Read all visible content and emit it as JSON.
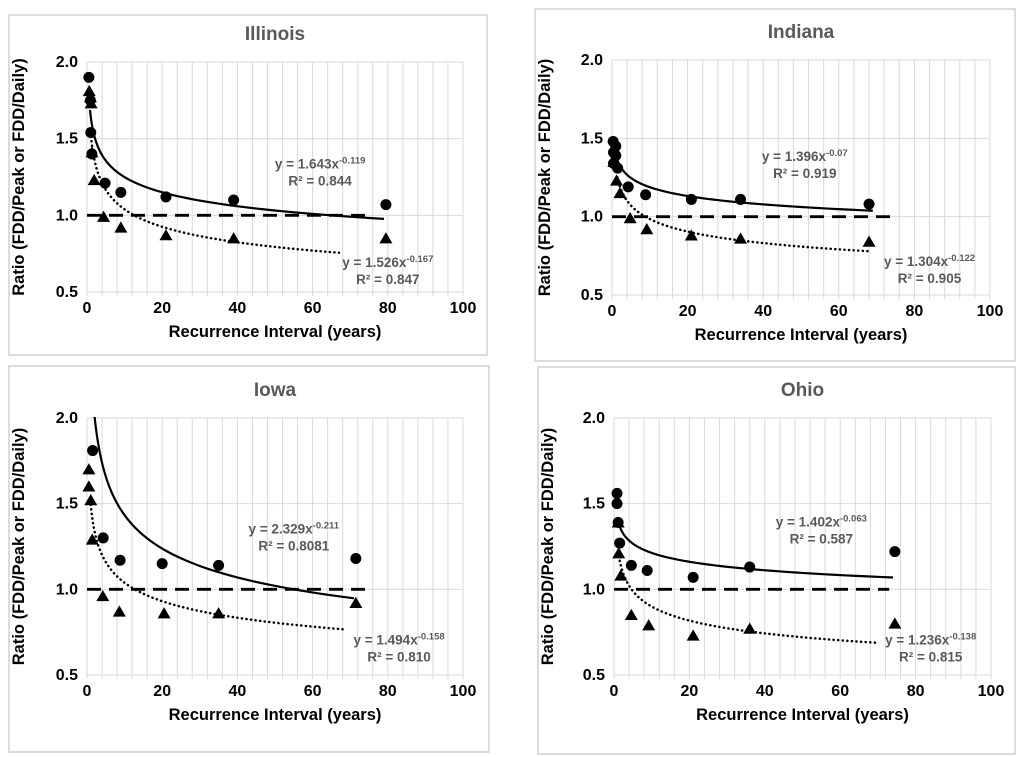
{
  "figure": {
    "background": "#ffffff",
    "panel_border_color": "#dcdcdc",
    "grid_color": "#d9d9d9",
    "title_color": "#595959",
    "equation_color": "#595959",
    "axis_text_color": "#000000",
    "marker_color": "#000000"
  },
  "chart_data": [
    {
      "type": "scatter",
      "title": "Illinois",
      "xlabel": "Recurrence Interval (years)",
      "ylabel": "Ratio (FDD/Peak or FDD/Daily)",
      "xlim": [
        0,
        100
      ],
      "ylim": [
        0.5,
        2.0
      ],
      "x_ticks": [
        0,
        20,
        40,
        60,
        80,
        100
      ],
      "y_ticks": [
        0.5,
        1.0,
        1.5,
        2.0
      ],
      "y_tick_labels": [
        "0.5",
        "1.0",
        "1.5",
        "2.0"
      ],
      "x_minor_unit": 4,
      "grid": true,
      "legend": "none",
      "reference_line": {
        "y": 1.0,
        "style": "dashed",
        "x_start": 0,
        "x_end": 75
      },
      "series": [
        {
          "marker": "circle",
          "points": [
            [
              0.5,
              1.9
            ],
            [
              0.9,
              1.75
            ],
            [
              1.0,
              1.54
            ],
            [
              1.3,
              1.4
            ],
            [
              4.8,
              1.21
            ],
            [
              9,
              1.15
            ],
            [
              21,
              1.12
            ],
            [
              39,
              1.1
            ],
            [
              79.5,
              1.07
            ]
          ],
          "trend": {
            "type": "power",
            "a": 1.643,
            "b": -0.119,
            "x_start": 0.8,
            "x_end": 79,
            "line_style": "solid"
          },
          "equation": {
            "base": "y = 1.643x",
            "exponent": "-0.119",
            "r2": "R² = 0.844",
            "label_x": 62,
            "label_y": 1.33
          }
        },
        {
          "marker": "triangle",
          "points": [
            [
              0.6,
              1.81
            ],
            [
              0.9,
              1.77
            ],
            [
              1.1,
              1.73
            ],
            [
              1.3,
              1.41
            ],
            [
              1.9,
              1.23
            ],
            [
              4.4,
              0.99
            ],
            [
              9,
              0.92
            ],
            [
              21,
              0.87
            ],
            [
              39,
              0.85
            ],
            [
              79.5,
              0.85
            ]
          ],
          "trend": {
            "type": "power",
            "a": 1.526,
            "b": -0.167,
            "x_start": 1.05,
            "x_end": 67,
            "line_style": "dotted"
          },
          "equation": {
            "base": "y = 1.526x",
            "exponent": "-0.167",
            "r2": "R² = 0.847",
            "label_x": 80,
            "label_y": 0.69
          }
        }
      ]
    },
    {
      "type": "scatter",
      "title": "Indiana",
      "xlabel": "Recurrence Interval (years)",
      "ylabel": "Ratio (FDD/Peak or FDD/Daily)",
      "xlim": [
        0,
        100
      ],
      "ylim": [
        0.5,
        2.0
      ],
      "x_ticks": [
        0,
        20,
        40,
        60,
        80,
        100
      ],
      "y_ticks": [
        0.5,
        1.0,
        1.5,
        2.0
      ],
      "y_tick_labels": [
        "0.5",
        "1.0",
        "1.5",
        "2.0"
      ],
      "x_minor_unit": 4,
      "grid": true,
      "legend": "none",
      "reference_line": {
        "y": 1.0,
        "style": "dashed",
        "x_start": 0,
        "x_end": 74
      },
      "series": [
        {
          "marker": "circle",
          "points": [
            [
              0.3,
              1.48
            ],
            [
              1.0,
              1.45
            ],
            [
              0.4,
              1.41
            ],
            [
              1.0,
              1.39
            ],
            [
              0.4,
              1.34
            ],
            [
              1.5,
              1.31
            ],
            [
              4.3,
              1.19
            ],
            [
              8.9,
              1.14
            ],
            [
              21,
              1.11
            ],
            [
              34,
              1.11
            ],
            [
              68,
              1.08
            ]
          ],
          "trend": {
            "type": "power",
            "a": 1.396,
            "b": -0.07,
            "x_start": 0.95,
            "x_end": 69,
            "line_style": "solid"
          },
          "equation": {
            "base": "y = 1.396x",
            "exponent": "-0.07",
            "r2": "R² = 0.919",
            "label_x": 51,
            "label_y": 1.38
          }
        },
        {
          "marker": "triangle",
          "points": [
            [
              0.5,
              1.35
            ],
            [
              1.2,
              1.23
            ],
            [
              2.1,
              1.15
            ],
            [
              4.8,
              0.99
            ],
            [
              9.2,
              0.92
            ],
            [
              21,
              0.88
            ],
            [
              34,
              0.86
            ],
            [
              68,
              0.84
            ]
          ],
          "trend": {
            "type": "power",
            "a": 1.304,
            "b": -0.122,
            "x_start": 1.4,
            "x_end": 68,
            "line_style": "dotted"
          },
          "equation": {
            "base": "y = 1.304x",
            "exponent": "-0.122",
            "r2": "R² = 0.905",
            "label_x": 84,
            "label_y": 0.71
          }
        }
      ]
    },
    {
      "type": "scatter",
      "title": "Iowa",
      "xlabel": "Recurrence Interval (years)",
      "ylabel": "Ratio (FDD/Peak or FDD/Daily)",
      "xlim": [
        0,
        100
      ],
      "ylim": [
        0.5,
        2.0
      ],
      "x_ticks": [
        0,
        20,
        40,
        60,
        80,
        100
      ],
      "y_ticks": [
        0.5,
        1.0,
        1.5,
        2.0
      ],
      "y_tick_labels": [
        "0.5",
        "1.0",
        "1.5",
        "2.0"
      ],
      "x_minor_unit": 4,
      "grid": true,
      "legend": "none",
      "reference_line": {
        "y": 1.0,
        "style": "dashed",
        "x_start": 0,
        "x_end": 74.5
      },
      "series": [
        {
          "marker": "circle",
          "points": [
            [
              1.5,
              1.81
            ],
            [
              4.3,
              1.3
            ],
            [
              8.8,
              1.17
            ],
            [
              20,
              1.15
            ],
            [
              35,
              1.14
            ],
            [
              71.5,
              1.18
            ]
          ],
          "trend": {
            "type": "power",
            "a": 2.329,
            "b": -0.211,
            "x_start": 1.0,
            "x_end": 71,
            "line_style": "solid"
          },
          "equation": {
            "base": "y = 2.329x",
            "exponent": "-0.211",
            "r2": "R² = 0.8081",
            "label_x": 55,
            "label_y": 1.35
          }
        },
        {
          "marker": "triangle",
          "points": [
            [
              0.5,
              1.7
            ],
            [
              0.5,
              1.6
            ],
            [
              1.0,
              1.52
            ],
            [
              1.4,
              1.29
            ],
            [
              4.2,
              0.96
            ],
            [
              8.6,
              0.87
            ],
            [
              20.5,
              0.86
            ],
            [
              35,
              0.86
            ],
            [
              71.5,
              0.92
            ]
          ],
          "trend": {
            "type": "power",
            "a": 1.494,
            "b": -0.158,
            "x_start": 1.0,
            "x_end": 68.5,
            "line_style": "dotted"
          },
          "equation": {
            "base": "y = 1.494x",
            "exponent": "-0.158",
            "r2": "R² = 0.810",
            "label_x": 83,
            "label_y": 0.7
          }
        }
      ]
    },
    {
      "type": "scatter",
      "title": "Ohio",
      "xlabel": "Recurrence Interval (years)",
      "ylabel": "Ratio (FDD/Peak or FDD/Daily)",
      "xlim": [
        0,
        100
      ],
      "ylim": [
        0.5,
        2.0
      ],
      "x_ticks": [
        0,
        20,
        40,
        60,
        80,
        100
      ],
      "y_ticks": [
        0.5,
        1.0,
        1.5,
        2.0
      ],
      "y_tick_labels": [
        "0.5",
        "1.0",
        "1.5",
        "2.0"
      ],
      "x_minor_unit": 4,
      "grid": true,
      "legend": "none",
      "reference_line": {
        "y": 1.0,
        "style": "dashed",
        "x_start": 0,
        "x_end": 73
      },
      "series": [
        {
          "marker": "circle",
          "points": [
            [
              0.8,
              1.56
            ],
            [
              0.8,
              1.5
            ],
            [
              1.1,
              1.39
            ],
            [
              1.5,
              1.27
            ],
            [
              4.6,
              1.14
            ],
            [
              8.8,
              1.11
            ],
            [
              21,
              1.07
            ],
            [
              36,
              1.13
            ],
            [
              74.5,
              1.22
            ]
          ],
          "trend": {
            "type": "power",
            "a": 1.402,
            "b": -0.063,
            "x_start": 1.0,
            "x_end": 74,
            "line_style": "solid"
          },
          "equation": {
            "base": "y = 1.402x",
            "exponent": "-0.063",
            "r2": "R² = 0.587",
            "label_x": 55,
            "label_y": 1.39
          }
        },
        {
          "marker": "triangle",
          "points": [
            [
              1.1,
              1.39
            ],
            [
              1.25,
              1.21
            ],
            [
              1.8,
              1.08
            ],
            [
              4.6,
              0.85
            ],
            [
              9.2,
              0.79
            ],
            [
              21,
              0.73
            ],
            [
              36,
              0.77
            ],
            [
              74.5,
              0.8
            ]
          ],
          "trend": {
            "type": "power",
            "a": 1.236,
            "b": -0.138,
            "x_start": 1.1,
            "x_end": 70,
            "line_style": "dotted"
          },
          "equation": {
            "base": "y = 1.236x",
            "exponent": "-0.138",
            "r2": "R² = 0.815",
            "label_x": 84,
            "label_y": 0.7
          }
        }
      ]
    }
  ]
}
